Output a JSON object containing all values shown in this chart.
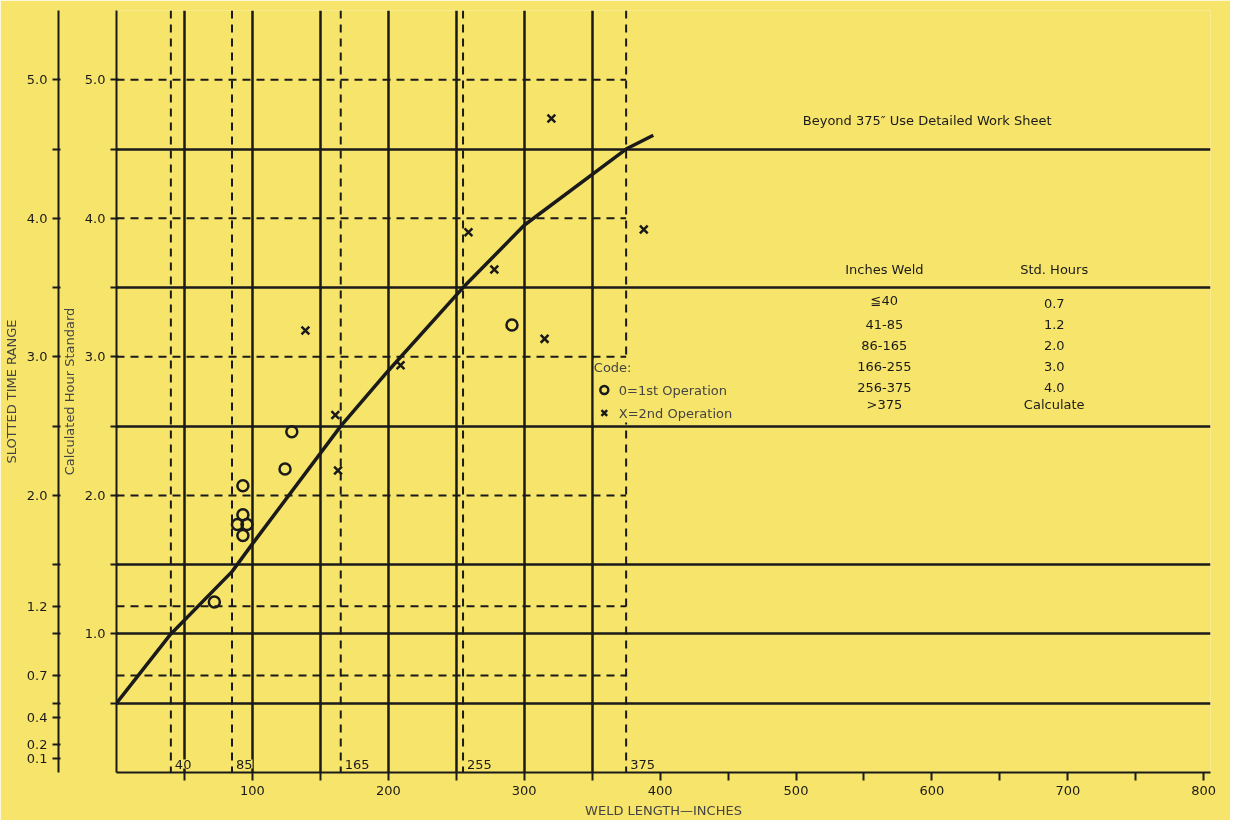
{
  "chart_data": {
    "type": "scatter",
    "xlabel": "WELD LENGTH—INCHES",
    "ylabel": "Calculated Hour Standard",
    "y2label": "SLOTTED TIME RANGE",
    "xlim": [
      0,
      805
    ],
    "ylim": [
      0,
      5.5
    ],
    "y2lim": [
      0,
      5.5
    ],
    "xticks": [
      {
        "value": 50,
        "label": null
      },
      100,
      {
        "value": 150,
        "label": null
      },
      200,
      {
        "value": 250,
        "label": null
      },
      300,
      {
        "value": 350,
        "label": null
      },
      400,
      {
        "value": 450,
        "label": null
      },
      500,
      {
        "value": 550,
        "label": null
      },
      600,
      {
        "value": 650,
        "label": null
      },
      700,
      {
        "value": 750,
        "label": null
      },
      800
    ],
    "yticks": [
      {
        "value": 0.5,
        "label": null
      },
      {
        "value": 1.0,
        "label": "1.0"
      },
      {
        "value": 1.5,
        "label": null
      },
      {
        "value": 2.0,
        "label": "2.0"
      },
      {
        "value": 2.5,
        "label": null
      },
      {
        "value": 3.0,
        "label": "3.0"
      },
      {
        "value": 3.5,
        "label": null
      },
      {
        "value": 4.0,
        "label": "4.0"
      },
      {
        "value": 4.5,
        "label": null
      },
      {
        "value": 5.0,
        "label": "5.0"
      }
    ],
    "y2ticks": [
      0.1,
      0.2,
      0.4,
      {
        "value": 0.5,
        "label": null
      },
      0.7,
      {
        "value": 1.0,
        "label": null
      },
      1.2,
      {
        "value": 1.5,
        "label": null
      },
      {
        "value": 2.0,
        "label": "2.0"
      },
      {
        "value": 2.5,
        "label": null
      },
      {
        "value": 3.0,
        "label": "3.0"
      },
      {
        "value": 3.5,
        "label": null
      },
      {
        "value": 4.0,
        "label": "4.0"
      },
      {
        "value": 4.5,
        "label": null
      },
      {
        "value": 5.0,
        "label": "5.0"
      }
    ],
    "grid": true,
    "legend": "center",
    "legend_title": "Code:",
    "series": [
      {
        "type": "line",
        "marker": "none",
        "line_style": "solid",
        "color": "#1a1a1a",
        "x": [
          0,
          40,
          85,
          100,
          165,
          200,
          255,
          300,
          375,
          395
        ],
        "values": [
          0.5,
          1.0,
          1.45,
          1.65,
          2.5,
          2.9,
          3.5,
          3.95,
          4.5,
          4.6
        ]
      },
      {
        "name": "0=1st Operation",
        "marker": "circle",
        "color": "#1a1a1a",
        "x": [
          72,
          93,
          93,
          89,
          96,
          93,
          124,
          129,
          291
        ],
        "values": [
          1.23,
          2.07,
          1.86,
          1.79,
          1.79,
          1.71,
          2.19,
          2.46,
          3.23
        ]
      },
      {
        "name": "X=2nd Operation",
        "marker": "cross",
        "color": "#1a1a1a",
        "x": [
          139,
          161,
          163,
          209,
          259,
          278,
          315,
          320,
          388
        ],
        "values": [
          3.19,
          2.58,
          2.18,
          2.94,
          3.9,
          3.63,
          3.13,
          4.72,
          3.92
        ]
      }
    ],
    "ref_lines": [
      {
        "axis": "x",
        "value": 40,
        "label": "40",
        "line_style": "dashed"
      },
      {
        "axis": "x",
        "value": 85,
        "label": "85",
        "line_style": "dashed"
      },
      {
        "axis": "x",
        "value": 165,
        "label": "165",
        "line_style": "dashed"
      },
      {
        "axis": "x",
        "value": 255,
        "label": "255",
        "line_style": "dashed"
      },
      {
        "axis": "x",
        "value": 375,
        "label": "375",
        "line_style": "dashed"
      },
      {
        "axis": "y",
        "value": 5.0,
        "line_style": "dashed"
      },
      {
        "axis": "y",
        "value": 4.0,
        "line_style": "dashed"
      },
      {
        "axis": "y",
        "value": 3.0,
        "line_style": "dashed"
      },
      {
        "axis": "y",
        "value": 2.0,
        "line_style": "dashed"
      },
      {
        "axis": "y",
        "value": 1.2,
        "line_style": "dashed"
      },
      {
        "axis": "y",
        "value": 0.7,
        "line_style": "dashed"
      }
    ],
    "annotations": [
      "Beyond 375″ Use Detailed Work Sheet",
      "Inches Weld",
      "Std. Hours",
      "≦40",
      "0.7",
      "41-85",
      "1.2",
      "86-165",
      "2.0",
      "166-255",
      "3.0",
      "256-375",
      "4.0",
      ">375",
      "Calculate"
    ]
  }
}
